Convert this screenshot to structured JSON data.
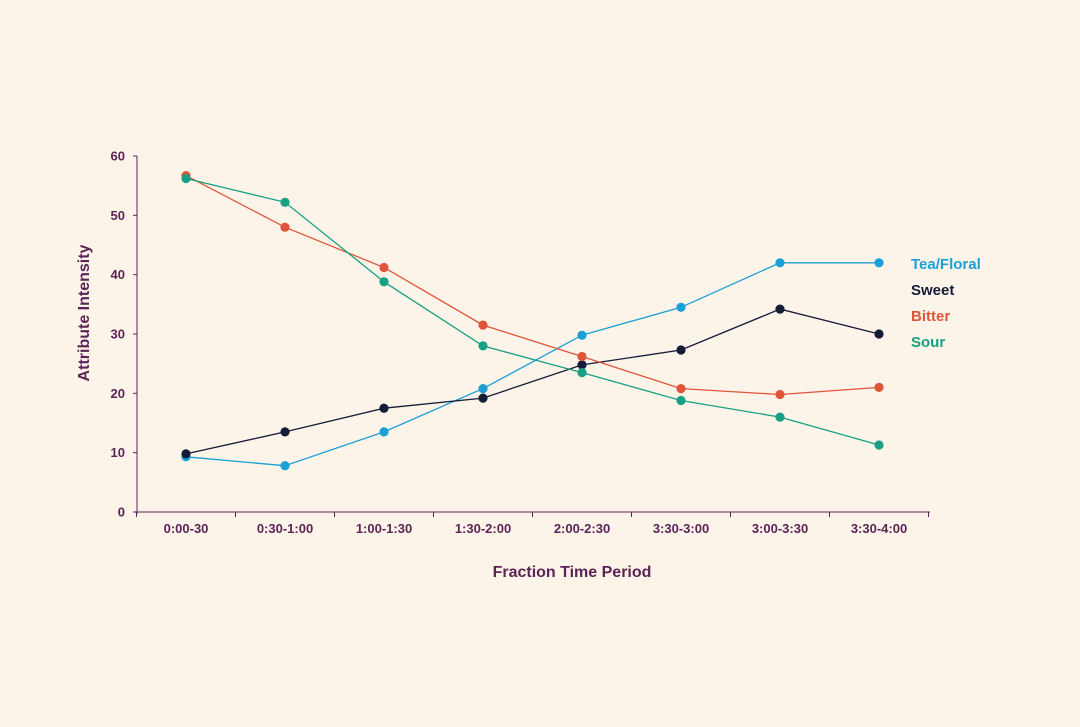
{
  "chart_data": {
    "type": "line",
    "title": "",
    "xlabel": "Fraction Time Period",
    "ylabel": "Attribute Intensity",
    "ylim": [
      0,
      60
    ],
    "yticks": [
      0,
      10,
      20,
      30,
      40,
      50,
      60
    ],
    "grid": false,
    "legend": "right",
    "categories": [
      "0:00-30",
      "0:30-1:00",
      "1:00-1:30",
      "1:30-2:00",
      "2:00-2:30",
      "3:30-3:00",
      "3:00-3:30",
      "3:30-4:00"
    ],
    "series": [
      {
        "name": "Tea/Floral",
        "color": "#1a9fd6",
        "values": [
          9.3,
          7.8,
          13.5,
          20.8,
          29.8,
          34.5,
          42.0,
          42.0
        ]
      },
      {
        "name": "Sweet",
        "color": "#141c38",
        "values": [
          9.8,
          13.5,
          17.5,
          19.2,
          24.8,
          27.3,
          34.2,
          30.0
        ]
      },
      {
        "name": "Bitter",
        "color": "#e0553a",
        "values": [
          56.7,
          48.0,
          41.2,
          31.5,
          26.2,
          20.8,
          19.8,
          21.0
        ]
      },
      {
        "name": "Sour",
        "color": "#17a083",
        "values": [
          56.2,
          52.2,
          38.8,
          28.0,
          23.5,
          18.8,
          16.0,
          11.3
        ]
      }
    ]
  }
}
